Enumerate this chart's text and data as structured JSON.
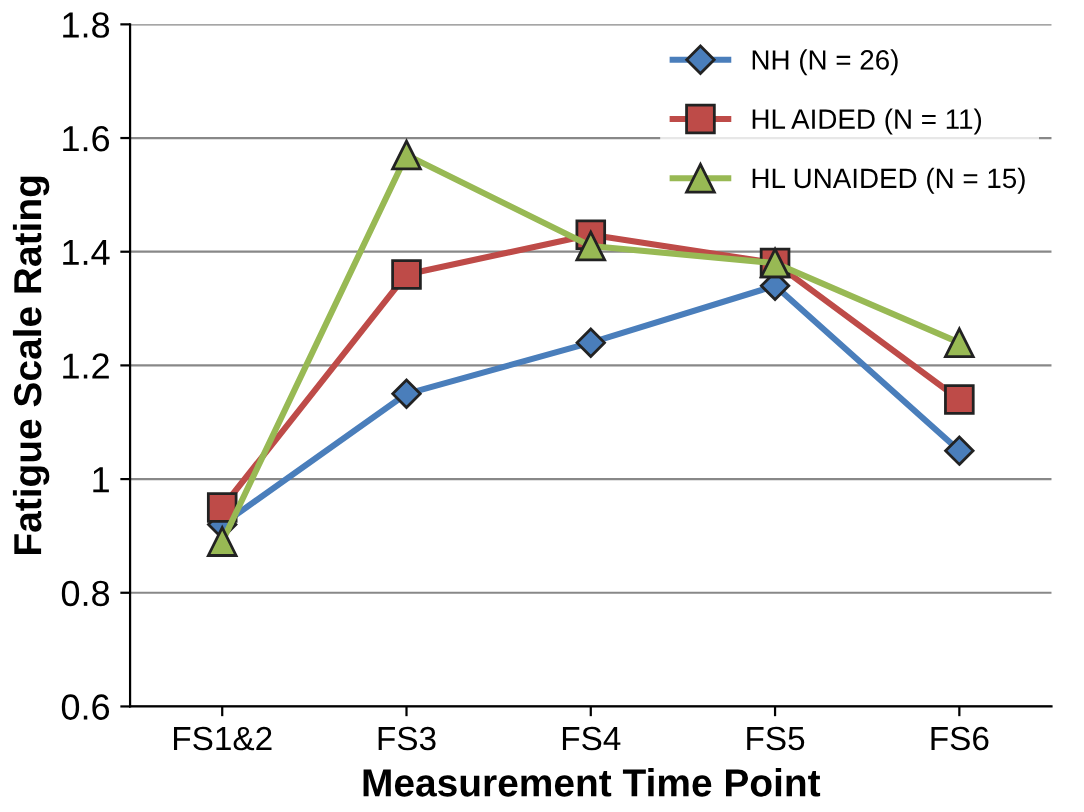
{
  "chart_data": {
    "type": "line",
    "xlabel": "Measurement Time Point",
    "ylabel": "Fatigue Scale Rating",
    "categories": [
      "FS1&2",
      "FS3",
      "FS4",
      "FS5",
      "FS6"
    ],
    "series": [
      {
        "name": "NH (N = 26)",
        "color": "#4a7ebb",
        "marker": "diamond",
        "values": [
          0.92,
          1.15,
          1.24,
          1.34,
          1.05
        ]
      },
      {
        "name": "HL AIDED (N = 11)",
        "color": "#be4b48",
        "marker": "square",
        "values": [
          0.95,
          1.36,
          1.43,
          1.38,
          1.14
        ]
      },
      {
        "name": "HL UNAIDED (N = 15)",
        "color": "#98b954",
        "marker": "triangle",
        "values": [
          0.89,
          1.57,
          1.41,
          1.38,
          1.24
        ]
      }
    ],
    "ylim": [
      0.6,
      1.8
    ],
    "yticks": [
      0.6,
      0.8,
      1,
      1.2,
      1.4,
      1.6,
      1.8
    ],
    "grid": "y",
    "legend": "top right",
    "line_style": "solid"
  }
}
